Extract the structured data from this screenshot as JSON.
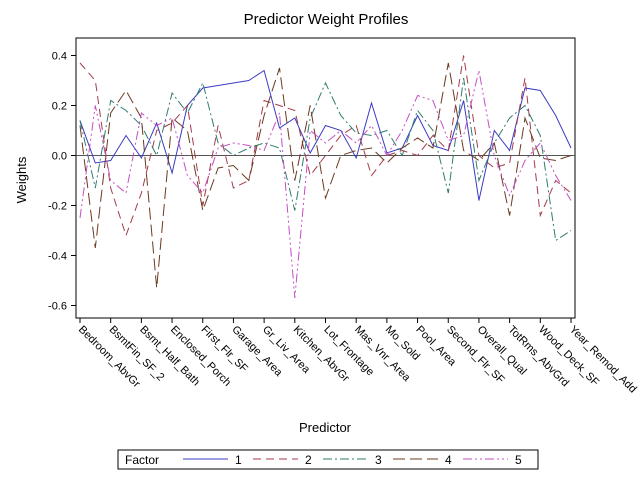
{
  "chart_data": {
    "type": "line",
    "title": "Predictor Weight Profiles",
    "xlabel": "Predictor",
    "ylabel": "Weights",
    "ylim": [
      -0.65,
      0.47
    ],
    "yticks": [
      -0.6,
      -0.4,
      -0.2,
      0.0,
      0.2,
      0.4
    ],
    "ytick_labels": [
      "-0.6",
      "-0.4",
      "-0.2",
      "0.0",
      "0.2",
      "0.4"
    ],
    "reference_line": 0.0,
    "grid": false,
    "legend_placement": "bottom",
    "legend_title": "Factor",
    "categories": [
      "Bedroom_AbvGr",
      "BsmtFin_SF_2",
      "Bsmt_Half_Bath",
      "Enclosed_Porch",
      "First_Flr_SF",
      "Garage_Area",
      "Gr_Liv_Area",
      "Kitchen_AbvGr",
      "Lot_Frontage",
      "Mas_Vnr_Area",
      "Mo_Sold",
      "Pool_Area",
      "Second_Flr_SF",
      "Overall_Qual",
      "TotRms_AbvGrd",
      "Wood_Deck_SF",
      "Year_Remod_Add"
    ],
    "x": [
      0,
      0.5,
      1,
      1.5,
      2,
      2.5,
      3,
      3.5,
      4,
      4.5,
      5,
      5.5,
      6,
      6.5,
      7,
      7.5,
      8,
      8.5,
      9,
      9.5,
      10,
      10.5,
      11,
      11.5,
      12,
      12.5,
      13,
      13.5,
      14,
      14.5,
      15,
      15.5,
      16
    ],
    "series": [
      {
        "name": "1",
        "color": "#3b3bc4",
        "dash": "",
        "values": [
          0.14,
          -0.03,
          -0.02,
          0.08,
          -0.01,
          0.13,
          -0.07,
          0.2,
          0.27,
          0.28,
          0.29,
          0.3,
          0.34,
          0.11,
          0.15,
          0.01,
          0.12,
          0.1,
          -0.01,
          0.21,
          0.01,
          0.03,
          0.16,
          0.04,
          0.02,
          0.22,
          -0.18,
          0.1,
          0.02,
          0.27,
          0.26,
          0.16,
          0.03
        ]
      },
      {
        "name": "2",
        "color": "#a33a4a",
        "dash": "8 5",
        "values": [
          0.37,
          0.3,
          -0.13,
          -0.32,
          -0.15,
          0.1,
          0.13,
          0.2,
          -0.2,
          0.12,
          -0.13,
          -0.1,
          0.22,
          0.2,
          0.18,
          -0.08,
          0.0,
          0.08,
          0.12,
          -0.08,
          0.0,
          0.02,
          0.0,
          0.08,
          0.02,
          0.4,
          0.0,
          -0.05,
          -0.03,
          0.31,
          -0.24,
          -0.1,
          -0.15
        ]
      },
      {
        "name": "3",
        "color": "#2e7d6e",
        "dash": "9 3 2 3",
        "values": [
          0.14,
          -0.13,
          0.22,
          0.18,
          0.12,
          0.0,
          0.25,
          0.17,
          0.29,
          0.05,
          0.0,
          0.03,
          0.05,
          0.03,
          -0.22,
          0.15,
          0.29,
          0.16,
          0.09,
          0.08,
          0.1,
          0.0,
          0.18,
          0.1,
          -0.15,
          0.31,
          -0.1,
          0.05,
          0.15,
          0.2,
          0.08,
          -0.34,
          -0.3
        ]
      },
      {
        "name": "4",
        "color": "#6b3a1f",
        "dash": "12 5",
        "values": [
          0.12,
          -0.37,
          0.17,
          0.26,
          0.15,
          -0.53,
          0.15,
          0.1,
          -0.22,
          -0.05,
          -0.04,
          -0.1,
          0.16,
          0.35,
          -0.1,
          0.2,
          -0.17,
          0.0,
          0.02,
          0.03,
          -0.03,
          0.03,
          0.07,
          0.03,
          0.37,
          0.02,
          -0.02,
          0.05,
          -0.24,
          0.15,
          -0.01,
          -0.02,
          0.0
        ]
      },
      {
        "name": "5",
        "color": "#c44fc4",
        "dash": "9 3 2 3 2 3",
        "values": [
          -0.25,
          0.2,
          -0.1,
          -0.15,
          0.17,
          0.12,
          0.15,
          -0.08,
          -0.15,
          0.03,
          0.05,
          0.04,
          0.02,
          0.17,
          -0.57,
          0.1,
          0.05,
          0.1,
          0.05,
          0.12,
          0.0,
          0.1,
          0.24,
          0.22,
          0.06,
          0.08,
          0.34,
          0.0,
          -0.16,
          -0.02,
          0.05,
          -0.08,
          -0.18
        ]
      }
    ]
  }
}
